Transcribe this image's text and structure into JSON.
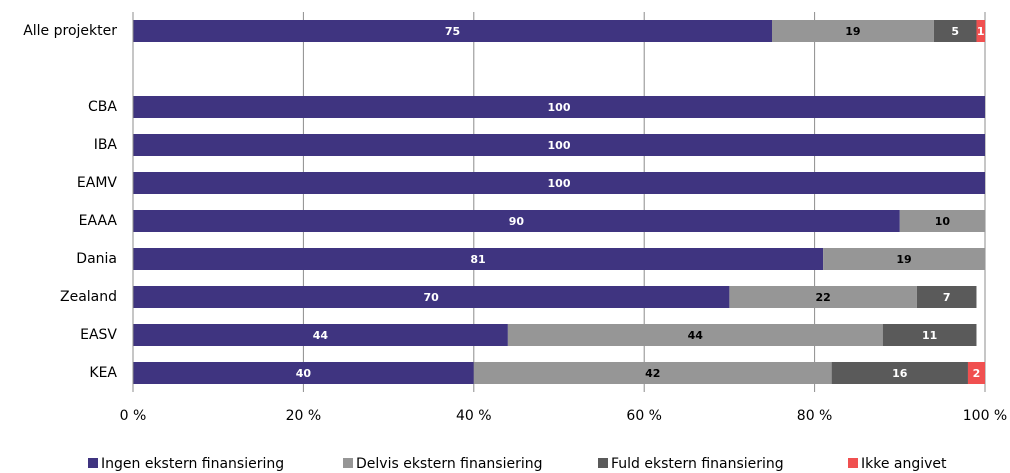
{
  "chart_data": {
    "type": "stacked-barh",
    "categories": [
      "Alle projekter",
      null,
      "CBA",
      "IBA",
      "EAMV",
      "EAAA",
      "Dania",
      "Zealand",
      "EASV",
      "KEA"
    ],
    "series": [
      {
        "name": "Ingen ekstern finansiering",
        "color": "#3f3480",
        "values": [
          75,
          null,
          100,
          100,
          100,
          90,
          81,
          70,
          44,
          40
        ]
      },
      {
        "name": "Delvis ekstern finansiering",
        "color": "#969696",
        "values": [
          19,
          null,
          0,
          0,
          0,
          10,
          19,
          22,
          44,
          42
        ]
      },
      {
        "name": "Fuld ekstern finansiering",
        "color": "#5a5a5a",
        "values": [
          5,
          null,
          0,
          0,
          0,
          0,
          0,
          7,
          11,
          16
        ]
      },
      {
        "name": "Ikke angivet",
        "color": "#f05050",
        "values": [
          1,
          null,
          0,
          0,
          0,
          0,
          0,
          0,
          0,
          2
        ]
      }
    ],
    "xlim": [
      0,
      100
    ],
    "xticks": [
      {
        "value": 0,
        "label": "0 %"
      },
      {
        "value": 20,
        "label": "20 %"
      },
      {
        "value": 40,
        "label": "40 %"
      },
      {
        "value": 60,
        "label": "60 %"
      },
      {
        "value": 80,
        "label": "80 %"
      },
      {
        "value": 100,
        "label": "100 %"
      }
    ],
    "grid": true,
    "legend": "bottom"
  }
}
